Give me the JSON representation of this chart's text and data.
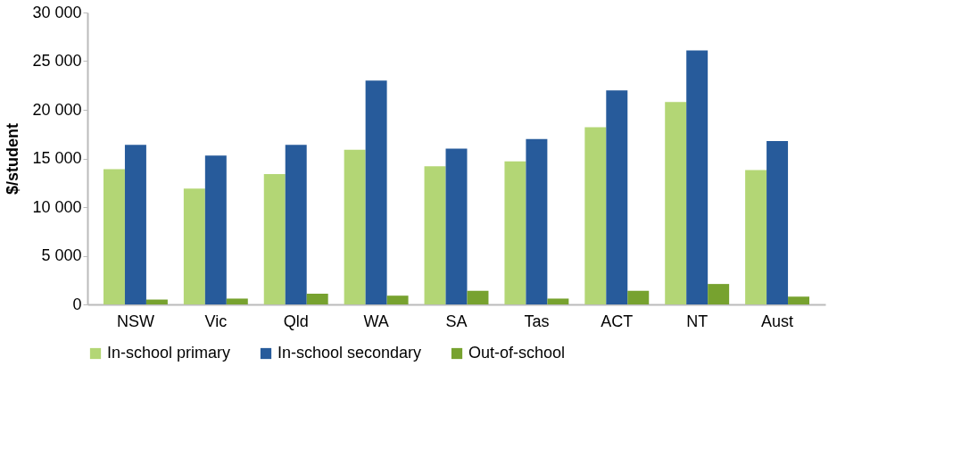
{
  "chart_data": {
    "type": "bar",
    "ylabel": "$/student",
    "categories": [
      "NSW",
      "Vic",
      "Qld",
      "WA",
      "SA",
      "Tas",
      "ACT",
      "NT",
      "Aust"
    ],
    "series": [
      {
        "name": "In-school primary",
        "color": "#b3d675",
        "values": [
          13900,
          11900,
          13400,
          15900,
          14200,
          14700,
          18200,
          20800,
          13800
        ]
      },
      {
        "name": "In-school secondary",
        "color": "#275b9b",
        "values": [
          16400,
          15300,
          16400,
          23000,
          16000,
          17000,
          22000,
          26100,
          16800
        ]
      },
      {
        "name": "Out-of-school",
        "color": "#77a22f",
        "values": [
          500,
          600,
          1100,
          900,
          1400,
          600,
          1400,
          2100,
          800
        ]
      }
    ],
    "ylim": [
      0,
      30000
    ],
    "yticks": [
      {
        "value": 0,
        "label": "0"
      },
      {
        "value": 5000,
        "label": "5 000"
      },
      {
        "value": 10000,
        "label": "10 000"
      },
      {
        "value": 15000,
        "label": "15 000"
      },
      {
        "value": 20000,
        "label": "20 000"
      },
      {
        "value": 25000,
        "label": "25 000"
      },
      {
        "value": 30000,
        "label": "30 000"
      }
    ],
    "grid": false,
    "legend": "bottom"
  }
}
